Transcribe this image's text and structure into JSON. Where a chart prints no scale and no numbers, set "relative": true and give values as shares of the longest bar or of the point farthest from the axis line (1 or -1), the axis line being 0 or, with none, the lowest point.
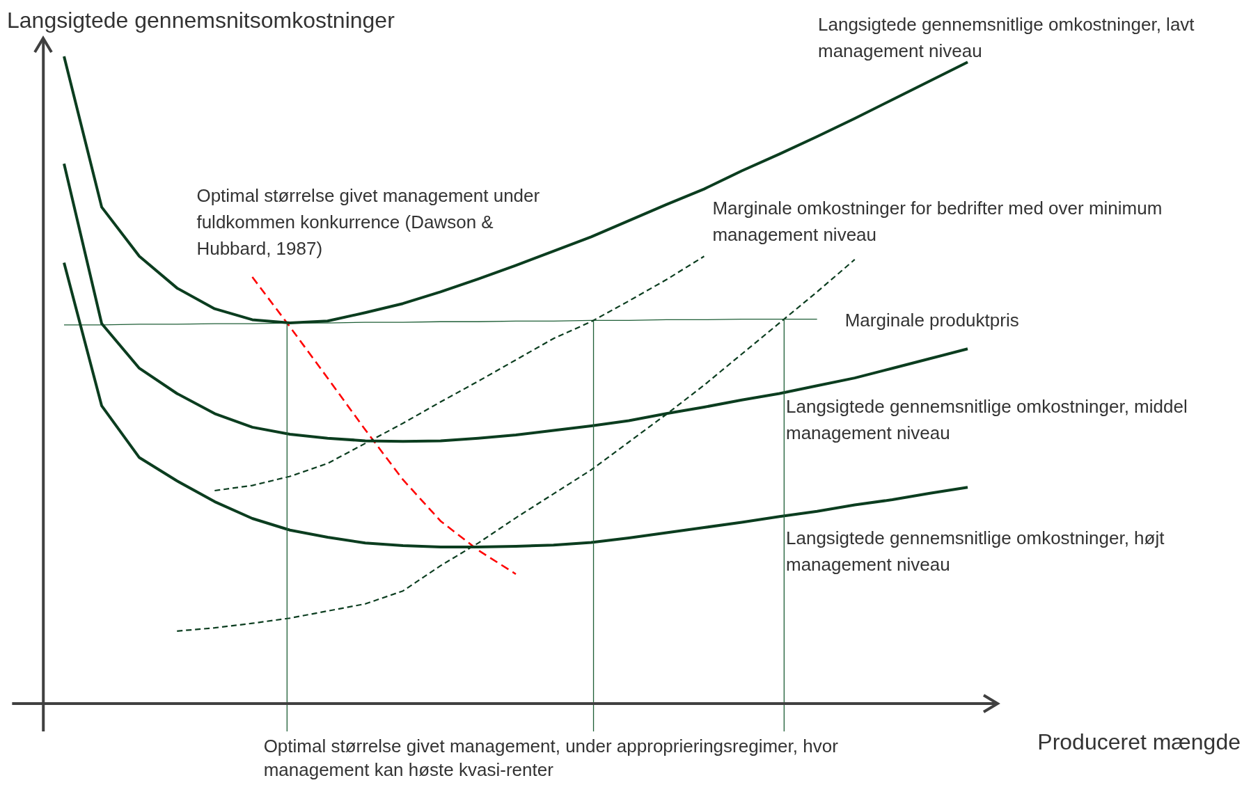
{
  "chart_data": {
    "type": "line",
    "relative": true,
    "ylabel": "Langsigtede gennemsnitsomkostninger",
    "xlabel": "Produceret mængde",
    "ylim": [
      -0.043,
      1.03
    ],
    "categories": [
      null,
      null,
      null,
      null,
      null,
      null,
      null,
      null,
      null,
      null,
      null,
      null,
      null,
      null,
      null,
      null,
      null,
      null,
      null,
      null,
      null,
      null,
      null,
      null,
      null
    ],
    "annotations": [
      "Optimal størrelse givet management, under approprieringsregimer, hvor management kan høste kvasi-renter"
    ],
    "series": [
      {
        "name": "Langsigtede gennemsnitlige omkostninger, lavt management niveau",
        "color": "#0b3d1f",
        "line_style": "solid",
        "values": [
          1.0,
          0.767,
          0.691,
          0.642,
          0.61,
          0.593,
          0.588,
          0.591,
          0.604,
          0.618,
          0.636,
          0.656,
          0.677,
          0.699,
          0.721,
          0.746,
          0.771,
          0.795,
          0.823,
          0.849,
          0.876,
          0.904,
          0.933,
          0.962,
          0.991
        ]
      },
      {
        "name": "Langsigtede gennemsnitlige omkostninger, middel management niveau",
        "color": "#0b3d1f",
        "line_style": "solid",
        "values": [
          0.834,
          0.587,
          0.518,
          0.479,
          0.448,
          0.427,
          0.416,
          0.41,
          0.406,
          0.405,
          0.406,
          0.41,
          0.415,
          0.422,
          0.429,
          0.437,
          0.448,
          0.458,
          0.469,
          0.479,
          0.491,
          0.503,
          0.518,
          0.533,
          0.548
        ]
      },
      {
        "name": "Langsigtede gennemsnitlige omkostninger, højt management niveau",
        "color": "#0b3d1f",
        "line_style": "solid",
        "values": [
          0.681,
          0.46,
          0.38,
          0.344,
          0.312,
          0.286,
          0.268,
          0.257,
          0.248,
          0.244,
          0.242,
          0.242,
          0.243,
          0.245,
          0.249,
          0.256,
          0.264,
          0.272,
          0.28,
          0.289,
          0.297,
          0.307,
          0.315,
          0.325,
          0.334
        ]
      },
      {
        "name": "Marginale omkostninger for bedrifter med over minimum management niveau",
        "color": "#0b3d1f",
        "line_style": "dashed",
        "values": [
          null,
          null,
          null,
          null,
          0.329,
          0.337,
          0.351,
          0.371,
          0.402,
          0.433,
          0.466,
          0.498,
          0.531,
          0.564,
          0.59,
          0.622,
          0.655,
          0.691,
          null,
          null,
          null,
          null,
          null,
          null,
          null
        ]
      },
      {
        "color": "#0b3d1f",
        "line_style": "dashed",
        "values": [
          null,
          null,
          null,
          0.112,
          0.117,
          0.124,
          0.132,
          0.143,
          0.154,
          0.174,
          0.213,
          0.248,
          0.287,
          0.324,
          0.361,
          0.404,
          0.447,
          0.492,
          0.54,
          0.588,
          0.636,
          0.686,
          null,
          null,
          null
        ]
      },
      {
        "name": "Optimal størrelse givet management under fuldkommen konkurrence (Dawson & Hubbard, 1987)",
        "color": "#ff0000",
        "line_style": "dashed",
        "values": [
          null,
          null,
          null,
          null,
          null,
          0.659,
          0.582,
          0.503,
          0.423,
          0.346,
          0.282,
          0.237,
          0.2,
          null,
          null,
          null,
          null,
          null,
          null,
          null,
          null,
          null,
          null,
          null,
          null
        ]
      },
      {
        "name": "Marginale produktpris",
        "color": "#1e5e36",
        "line_style": "solid",
        "values": [
          0.585,
          0.585,
          0.586,
          0.586,
          0.587,
          0.587,
          0.588,
          0.588,
          0.589,
          0.589,
          0.59,
          0.59,
          0.591,
          0.591,
          0.592,
          0.592,
          0.593,
          0.593,
          0.594,
          0.594,
          0.594,
          null,
          null,
          null,
          null
        ]
      }
    ]
  }
}
